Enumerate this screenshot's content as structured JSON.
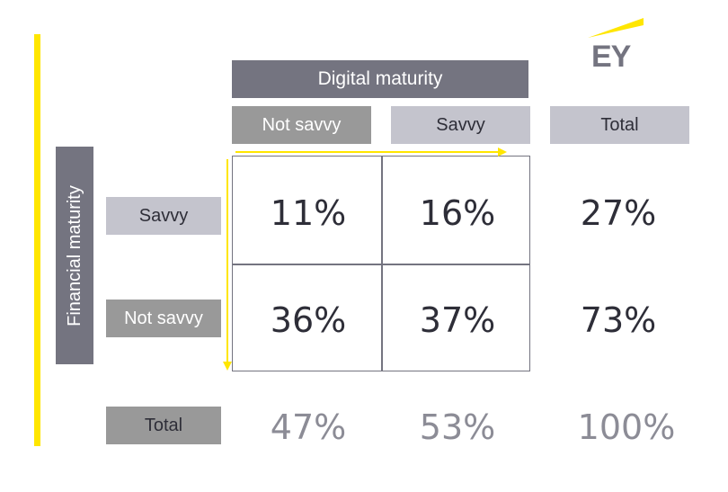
{
  "logo": {
    "text": "EY"
  },
  "column_axis": {
    "title": "Digital maturity",
    "headers": [
      "Not savvy",
      "Savvy"
    ],
    "total_label": "Total"
  },
  "row_axis": {
    "title": "Financial maturity",
    "headers": [
      "Savvy",
      "Not savvy"
    ],
    "total_label": "Total"
  },
  "cells": [
    [
      "11%",
      "16%"
    ],
    [
      "36%",
      "37%"
    ]
  ],
  "row_totals": [
    "27%",
    "73%"
  ],
  "column_totals": [
    "47%",
    "53%"
  ],
  "grand_total": "100%",
  "colors": {
    "accent": "#FFE600",
    "dark_header": "#747480",
    "mid_header": "#999999",
    "light_header": "#C4C4CD",
    "total_text": "#8C8C96"
  }
}
